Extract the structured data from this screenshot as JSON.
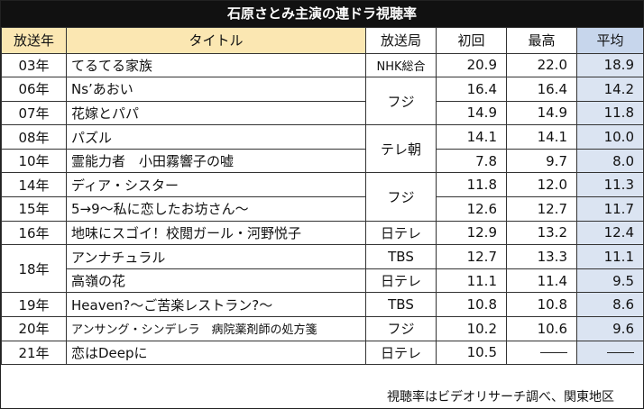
{
  "title": "石原さとみ主演の連ドラ視聴率",
  "headers": {
    "year": "放送年",
    "title": "タイトル",
    "station": "放送局",
    "first": "初回",
    "top": "最高",
    "avg": "平均"
  },
  "rows": [
    {
      "year": "03年",
      "title": "てるてる家族",
      "station": "NHK総合",
      "first": "20.9",
      "top": "22.0",
      "avg": "18.9"
    },
    {
      "year": "06年",
      "title": "Ns’あおい",
      "station": "フジ",
      "first": "16.4",
      "top": "16.4",
      "avg": "14.2"
    },
    {
      "year": "07年",
      "title": "花嫁とパパ",
      "station": "フジ",
      "first": "14.9",
      "top": "14.9",
      "avg": "11.8"
    },
    {
      "year": "08年",
      "title": "パズル",
      "station": "テレ朝",
      "first": "14.1",
      "top": "14.1",
      "avg": "10.0"
    },
    {
      "year": "10年",
      "title": "霊能力者　小田霧響子の嘘",
      "station": "テレ朝",
      "first": "7.8",
      "top": "9.7",
      "avg": "8.0"
    },
    {
      "year": "14年",
      "title": "ディア・シスター",
      "station": "フジ",
      "first": "11.8",
      "top": "12.0",
      "avg": "11.3"
    },
    {
      "year": "15年",
      "title": "5→9～私に恋したお坊さん～",
      "station": "フジ",
      "first": "12.6",
      "top": "12.7",
      "avg": "11.7"
    },
    {
      "year": "16年",
      "title": "地味にスゴイ！校閲ガール・河野悦子",
      "station": "日テレ",
      "first": "12.9",
      "top": "13.2",
      "avg": "12.4"
    },
    {
      "year": "18年",
      "title": "アンナチュラル",
      "station": "TBS",
      "first": "12.7",
      "top": "13.3",
      "avg": "11.1"
    },
    {
      "year": "18年",
      "title": "高嶺の花",
      "station": "日テレ",
      "first": "11.1",
      "top": "11.4",
      "avg": "9.5"
    },
    {
      "year": "19年",
      "title": "Heaven?～ご苦楽レストラン?～",
      "station": "TBS",
      "first": "10.8",
      "top": "10.8",
      "avg": "8.6"
    },
    {
      "year": "20年",
      "title": "アンサング・シンデレラ　病院薬剤師の処方箋",
      "station": "フジ",
      "first": "10.2",
      "top": "10.6",
      "avg": "9.6"
    },
    {
      "year": "21年",
      "title": "恋はDeepに",
      "station": "日テレ",
      "first": "10.5",
      "top": "",
      "avg": ""
    }
  ],
  "footer": "視聴率はビデオリサーチ調べ、関東地区"
}
